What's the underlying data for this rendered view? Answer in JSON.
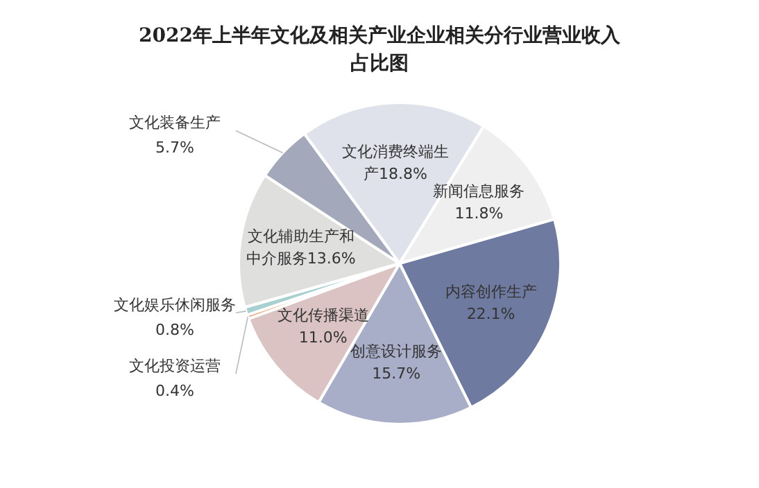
{
  "chart_data": {
    "type": "pie",
    "title": "2022年上半年文化及相关产业企业相关分行业营业收入占比图",
    "categories": [
      "内容创作生产",
      "创意设计服务",
      "文化传播渠道",
      "文化投资运营",
      "文化娱乐休闲服务",
      "文化辅助生产和中介服务",
      "文化装备生产",
      "文化消费终端生产",
      "新闻信息服务"
    ],
    "values": [
      22.1,
      15.7,
      11.0,
      0.4,
      0.8,
      13.6,
      5.7,
      18.8,
      11.8
    ],
    "value_labels": [
      "22.1%",
      "15.7%",
      "11.0%",
      "0.4%",
      "0.8%",
      "13.6%",
      "5.7%",
      "18.8%",
      "11.8%"
    ],
    "colors": [
      "#6f7aa0",
      "#a8aec8",
      "#dcc3c3",
      "#e8a070",
      "#a8d0d0",
      "#dfe0de",
      "#a3a8ba",
      "#dfe2ea",
      "#efefef"
    ]
  }
}
